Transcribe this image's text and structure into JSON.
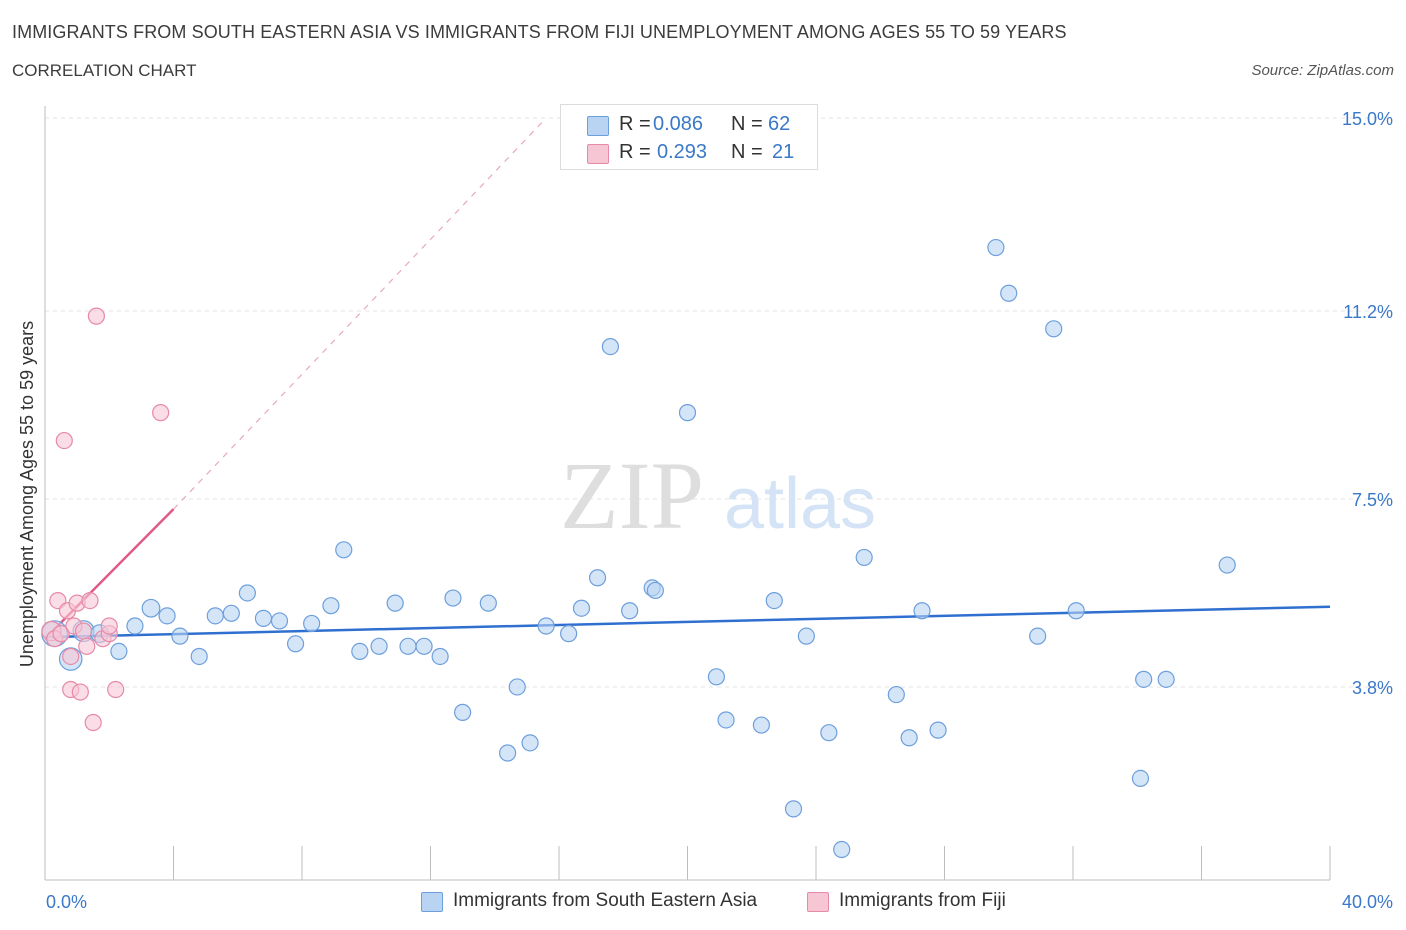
{
  "header": {
    "title": "IMMIGRANTS FROM SOUTH EASTERN ASIA VS IMMIGRANTS FROM FIJI UNEMPLOYMENT AMONG AGES 55 TO 59 YEARS",
    "subtitle": "CORRELATION CHART",
    "source": "Source: ZipAtlas.com"
  },
  "watermark": {
    "zip": "ZIP",
    "atlas": "atlas"
  },
  "legend": {
    "series1": {
      "r_label": "R =",
      "r_value": "0.086",
      "n_label": "N =",
      "n_value": "62"
    },
    "series2": {
      "r_label": "R =",
      "r_value": "0.293",
      "n_label": "N =",
      "n_value": "21"
    }
  },
  "colors": {
    "blue_fill": "#b9d3f3",
    "blue_stroke": "#6d9fdc",
    "blue_line": "#2f6fd0",
    "pink_fill": "#f7c6d5",
    "pink_stroke": "#e68aa7",
    "pink_line": "#e05a86",
    "axis_label": "#3a78c9",
    "grid": "#e3e3e3"
  },
  "chart_data": {
    "type": "scatter",
    "title": "IMMIGRANTS FROM SOUTH EASTERN ASIA VS IMMIGRANTS FROM FIJI UNEMPLOYMENT AMONG AGES 55 TO 59 YEARS",
    "xlabel": "",
    "ylabel": "Unemployment Among Ages 55 to 59 years",
    "xlim": [
      0,
      40
    ],
    "ylim": [
      0,
      15
    ],
    "x_tick_labels": [
      "0.0%",
      "40.0%"
    ],
    "y_ticks": [
      {
        "value": 3.8,
        "label": "3.8%"
      },
      {
        "value": 7.5,
        "label": "7.5%"
      },
      {
        "value": 11.2,
        "label": "11.2%"
      },
      {
        "value": 15.0,
        "label": "15.0%"
      }
    ],
    "grid": true,
    "legend_position": "bottom-center",
    "series": [
      {
        "name": "Immigrants from South Eastern Asia",
        "color": "#6d9fdc",
        "trend": {
          "x": [
            0,
            40
          ],
          "y": [
            4.78,
            5.38
          ]
        },
        "points": [
          {
            "x": 0.3,
            "y": 4.85,
            "s": 1.6
          },
          {
            "x": 0.8,
            "y": 4.35,
            "s": 1.4
          },
          {
            "x": 1.2,
            "y": 4.9,
            "s": 1.3
          },
          {
            "x": 1.7,
            "y": 4.85,
            "s": 1.1
          },
          {
            "x": 2.3,
            "y": 4.5,
            "s": 1.0
          },
          {
            "x": 2.8,
            "y": 5.0,
            "s": 1.0
          },
          {
            "x": 3.3,
            "y": 5.35,
            "s": 1.1
          },
          {
            "x": 3.8,
            "y": 5.2,
            "s": 1.0
          },
          {
            "x": 4.2,
            "y": 4.8,
            "s": 1.0
          },
          {
            "x": 4.8,
            "y": 4.4,
            "s": 1.0
          },
          {
            "x": 5.3,
            "y": 5.2,
            "s": 1.0
          },
          {
            "x": 5.8,
            "y": 5.25,
            "s": 1.0
          },
          {
            "x": 6.3,
            "y": 5.65,
            "s": 1.0
          },
          {
            "x": 6.8,
            "y": 5.15,
            "s": 1.0
          },
          {
            "x": 7.3,
            "y": 5.1,
            "s": 1.0
          },
          {
            "x": 7.8,
            "y": 4.65,
            "s": 1.0
          },
          {
            "x": 8.3,
            "y": 5.05,
            "s": 1.0
          },
          {
            "x": 8.9,
            "y": 5.4,
            "s": 1.0
          },
          {
            "x": 9.3,
            "y": 6.5,
            "s": 1.0
          },
          {
            "x": 9.8,
            "y": 4.5,
            "s": 1.0
          },
          {
            "x": 10.4,
            "y": 4.6,
            "s": 1.0
          },
          {
            "x": 10.9,
            "y": 5.45,
            "s": 1.0
          },
          {
            "x": 11.3,
            "y": 4.6,
            "s": 1.0
          },
          {
            "x": 11.8,
            "y": 4.6,
            "s": 1.0
          },
          {
            "x": 12.3,
            "y": 4.4,
            "s": 1.0
          },
          {
            "x": 12.7,
            "y": 5.55,
            "s": 1.0
          },
          {
            "x": 13.0,
            "y": 3.3,
            "s": 1.0
          },
          {
            "x": 13.8,
            "y": 5.45,
            "s": 1.0
          },
          {
            "x": 14.4,
            "y": 2.5,
            "s": 1.0
          },
          {
            "x": 14.7,
            "y": 3.8,
            "s": 1.0
          },
          {
            "x": 15.1,
            "y": 2.7,
            "s": 1.0
          },
          {
            "x": 15.6,
            "y": 5.0,
            "s": 1.0
          },
          {
            "x": 16.3,
            "y": 4.85,
            "s": 1.0
          },
          {
            "x": 16.7,
            "y": 5.35,
            "s": 1.0
          },
          {
            "x": 17.2,
            "y": 5.95,
            "s": 1.0
          },
          {
            "x": 17.6,
            "y": 10.5,
            "s": 1.0
          },
          {
            "x": 18.2,
            "y": 5.3,
            "s": 1.0
          },
          {
            "x": 18.9,
            "y": 5.75,
            "s": 1.0
          },
          {
            "x": 19.0,
            "y": 5.7,
            "s": 1.0
          },
          {
            "x": 20.0,
            "y": 9.2,
            "s": 1.0
          },
          {
            "x": 20.9,
            "y": 4.0,
            "s": 1.0
          },
          {
            "x": 21.2,
            "y": 3.15,
            "s": 1.0
          },
          {
            "x": 22.3,
            "y": 3.05,
            "s": 1.0
          },
          {
            "x": 22.7,
            "y": 5.5,
            "s": 1.0
          },
          {
            "x": 23.3,
            "y": 1.4,
            "s": 1.0
          },
          {
            "x": 23.7,
            "y": 4.8,
            "s": 1.0
          },
          {
            "x": 24.4,
            "y": 2.9,
            "s": 1.0
          },
          {
            "x": 24.8,
            "y": 0.6,
            "s": 1.0
          },
          {
            "x": 25.5,
            "y": 6.35,
            "s": 1.0
          },
          {
            "x": 26.5,
            "y": 3.65,
            "s": 1.0
          },
          {
            "x": 26.9,
            "y": 2.8,
            "s": 1.0
          },
          {
            "x": 27.3,
            "y": 5.3,
            "s": 1.0
          },
          {
            "x": 27.8,
            "y": 2.95,
            "s": 1.0
          },
          {
            "x": 29.6,
            "y": 12.45,
            "s": 1.0
          },
          {
            "x": 30.0,
            "y": 11.55,
            "s": 1.0
          },
          {
            "x": 30.9,
            "y": 4.8,
            "s": 1.0
          },
          {
            "x": 31.4,
            "y": 10.85,
            "s": 1.0
          },
          {
            "x": 32.1,
            "y": 5.3,
            "s": 1.0
          },
          {
            "x": 34.2,
            "y": 3.95,
            "s": 1.0
          },
          {
            "x": 34.9,
            "y": 3.95,
            "s": 1.0
          },
          {
            "x": 34.1,
            "y": 2.0,
            "s": 1.0
          },
          {
            "x": 36.8,
            "y": 6.2,
            "s": 1.0
          }
        ]
      },
      {
        "name": "Immigrants from Fiji",
        "color": "#e68aa7",
        "trend": {
          "x": [
            0,
            4.0
          ],
          "y": [
            4.75,
            7.3
          ],
          "dash_to": {
            "x": 15.6,
            "y": 15.0
          }
        },
        "points": [
          {
            "x": 0.2,
            "y": 4.9,
            "s": 1.2
          },
          {
            "x": 0.3,
            "y": 4.75,
            "s": 1.0
          },
          {
            "x": 0.4,
            "y": 5.5,
            "s": 1.0
          },
          {
            "x": 0.5,
            "y": 4.85,
            "s": 1.0
          },
          {
            "x": 0.6,
            "y": 8.65,
            "s": 1.0
          },
          {
            "x": 0.7,
            "y": 5.3,
            "s": 1.0
          },
          {
            "x": 0.8,
            "y": 4.4,
            "s": 1.0
          },
          {
            "x": 0.8,
            "y": 3.75,
            "s": 1.0
          },
          {
            "x": 0.9,
            "y": 5.0,
            "s": 1.0
          },
          {
            "x": 1.0,
            "y": 5.45,
            "s": 1.0
          },
          {
            "x": 1.1,
            "y": 3.7,
            "s": 1.0
          },
          {
            "x": 1.2,
            "y": 4.9,
            "s": 1.0
          },
          {
            "x": 1.3,
            "y": 4.6,
            "s": 1.0
          },
          {
            "x": 1.4,
            "y": 5.5,
            "s": 1.0
          },
          {
            "x": 1.5,
            "y": 3.1,
            "s": 1.0
          },
          {
            "x": 1.6,
            "y": 11.1,
            "s": 1.0
          },
          {
            "x": 1.8,
            "y": 4.75,
            "s": 1.0
          },
          {
            "x": 2.0,
            "y": 4.85,
            "s": 1.0
          },
          {
            "x": 2.0,
            "y": 5.0,
            "s": 1.0
          },
          {
            "x": 2.2,
            "y": 3.75,
            "s": 1.0
          },
          {
            "x": 3.6,
            "y": 9.2,
            "s": 1.0
          }
        ]
      }
    ]
  },
  "bottom_legend": {
    "series1": "Immigrants from South Eastern Asia",
    "series2": "Immigrants from Fiji"
  }
}
